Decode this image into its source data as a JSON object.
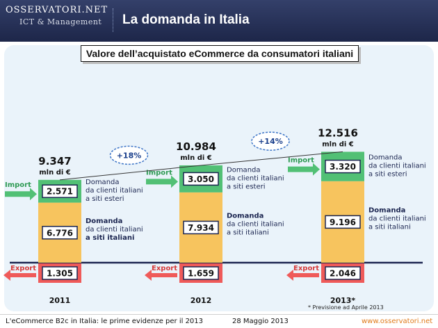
{
  "header": {
    "logo_title": "OSSERVATORI.NET",
    "logo_subtitle": "ICT & Management",
    "title": "La domanda in Italia"
  },
  "footer": {
    "left": "L'eCommerce B2c in Italia: le prime evidenze per il 2013",
    "middle": "28 Maggio 2013",
    "right": "www.osservatori.net"
  },
  "footnote": "* Previsione ad Aprile 2013",
  "colors": {
    "import": "#52c075",
    "domestic": "#f7c45e",
    "export": "#ef5a59",
    "header": "#27325a",
    "panel": "#eaf3fa",
    "growth_text": "#1a3f8c"
  },
  "chart_data": {
    "type": "bar",
    "title": "Valore dell’acquistato eCommerce da consumatori italiani",
    "categories": [
      "2011",
      "2012",
      "2013*"
    ],
    "unit": "mln di €",
    "totals": [
      "9.347",
      "10.984",
      "12.516"
    ],
    "series": [
      {
        "name": "Import",
        "values": [
          2571,
          3050,
          3320
        ],
        "labels": [
          "2.571",
          "3.050",
          "3.320"
        ],
        "description": [
          "Domanda",
          "da clienti italiani",
          "a siti esteri"
        ]
      },
      {
        "name": "Domestic",
        "values": [
          6776,
          7934,
          9196
        ],
        "labels": [
          "6.776",
          "7.934",
          "9.196"
        ],
        "description": [
          "Domanda",
          "da clienti italiani",
          "a siti italiani"
        ]
      },
      {
        "name": "Export",
        "values": [
          1305,
          1659,
          2046
        ],
        "labels": [
          "1.305",
          "1.659",
          "2.046"
        ]
      }
    ],
    "growth": [
      "+18%",
      "+14%"
    ],
    "import_label": "Import",
    "export_label": "Export"
  }
}
